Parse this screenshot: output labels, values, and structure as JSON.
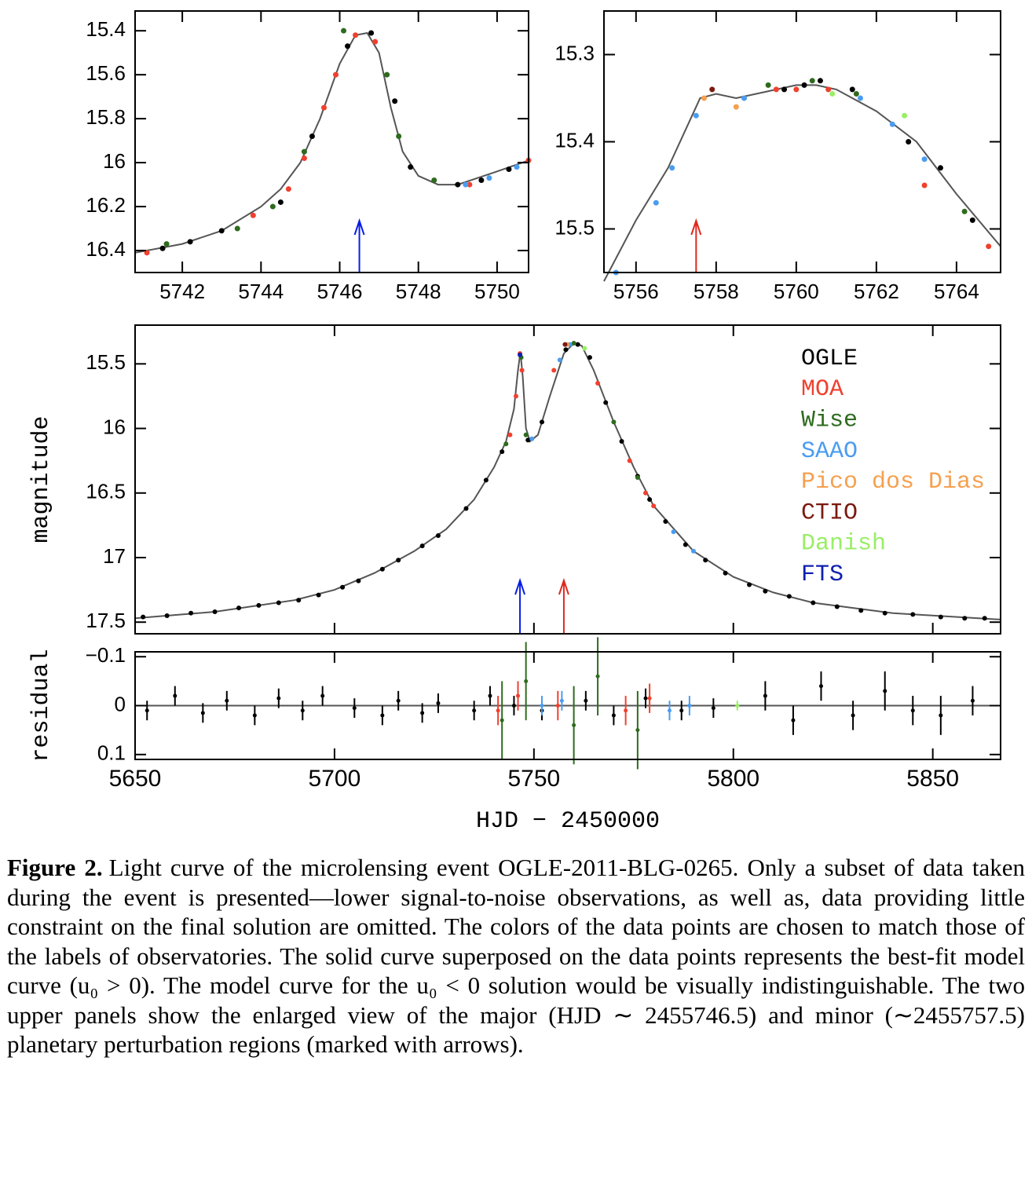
{
  "chart_data": [
    {
      "type": "scatter",
      "xlim": [
        5740.8,
        5750.8
      ],
      "ylim": [
        16.5,
        15.31
      ],
      "xticks": [
        5742,
        5744,
        5746,
        5748,
        5750
      ],
      "yticks": [
        15.4,
        15.6,
        15.8,
        16,
        16.2,
        16.4
      ],
      "model": {
        "color": "#555555",
        "x": [
          5740.8,
          5742,
          5743,
          5744,
          5744.5,
          5745,
          5745.5,
          5746,
          5746.4,
          5746.7,
          5747,
          5747.3,
          5747.6,
          5748,
          5748.5,
          5749,
          5749.5,
          5750,
          5750.8
        ],
        "values": [
          16.41,
          16.37,
          16.31,
          16.2,
          16.12,
          16.0,
          15.8,
          15.55,
          15.42,
          15.41,
          15.5,
          15.75,
          15.95,
          16.06,
          16.1,
          16.1,
          16.07,
          16.04,
          15.99
        ]
      },
      "series": [
        {
          "color": "#000000",
          "x": [
            5741.5,
            5742.2,
            5743,
            5744.5,
            5745.3,
            5746.2,
            5746.8,
            5747.4,
            5747.8,
            5749,
            5749.6,
            5750.3
          ],
          "values": [
            16.39,
            16.36,
            16.31,
            16.18,
            15.88,
            15.47,
            15.41,
            15.72,
            16.02,
            16.1,
            16.08,
            16.03
          ]
        },
        {
          "color": "#f0402e",
          "x": [
            5741.1,
            5743.8,
            5744.7,
            5745.1,
            5745.6,
            5745.9,
            5746.4,
            5746.9,
            5749.3,
            5750.8
          ],
          "values": [
            16.41,
            16.24,
            16.12,
            15.98,
            15.75,
            15.6,
            15.42,
            15.45,
            16.1,
            15.99
          ]
        },
        {
          "color": "#2e6b1e",
          "x": [
            5741.6,
            5743.4,
            5744.3,
            5745.1,
            5746.1,
            5747.2,
            5747.5,
            5748.4
          ],
          "values": [
            16.37,
            16.3,
            16.2,
            15.95,
            15.4,
            15.6,
            15.88,
            16.08
          ]
        },
        {
          "color": "#4a9cf0",
          "x": [
            5749.2,
            5749.8,
            5750.5
          ],
          "values": [
            16.1,
            16.07,
            16.02
          ]
        }
      ],
      "arrows": [
        {
          "x": 5746.5,
          "color": "#0a1ee6"
        }
      ]
    },
    {
      "type": "scatter",
      "xlim": [
        5755.2,
        5765.1
      ],
      "ylim": [
        15.55,
        15.25
      ],
      "xticks": [
        5756,
        5758,
        5760,
        5762,
        5764
      ],
      "yticks": [
        15.3,
        15.4,
        15.5
      ],
      "model": {
        "color": "#555555",
        "x": [
          5755.2,
          5756,
          5756.8,
          5757.3,
          5757.6,
          5758,
          5758.5,
          5759,
          5760,
          5760.5,
          5761,
          5762,
          5763,
          5764,
          5765.1
        ],
        "values": [
          15.56,
          15.49,
          15.43,
          15.38,
          15.35,
          15.345,
          15.35,
          15.345,
          15.335,
          15.335,
          15.34,
          15.365,
          15.4,
          15.46,
          15.52
        ]
      },
      "series": [
        {
          "color": "#000000",
          "x": [
            5759.7,
            5760.2,
            5760.6,
            5761.4,
            5762.8,
            5763.6,
            5764.4
          ],
          "values": [
            15.34,
            15.335,
            15.33,
            15.34,
            15.4,
            15.43,
            15.49
          ]
        },
        {
          "color": "#f0402e",
          "x": [
            5759.5,
            5760.0,
            5760.8,
            5763.2,
            5764.8
          ],
          "values": [
            15.34,
            15.34,
            15.34,
            15.45,
            15.52
          ]
        },
        {
          "color": "#2e6b1e",
          "x": [
            5759.3,
            5760.4,
            5761.5,
            5764.2
          ],
          "values": [
            15.335,
            15.33,
            15.345,
            15.48
          ]
        },
        {
          "color": "#4a9cf0",
          "x": [
            5755.5,
            5756.5,
            5756.9,
            5757.5,
            5758.7,
            5761.6,
            5762.4,
            5763.2
          ],
          "values": [
            15.55,
            15.47,
            15.43,
            15.37,
            15.35,
            15.35,
            15.38,
            15.42
          ]
        },
        {
          "color": "#f5a050",
          "x": [
            5757.7,
            5758.5
          ],
          "values": [
            15.35,
            15.36
          ]
        },
        {
          "color": "#7a1a10",
          "x": [
            5757.9
          ],
          "values": [
            15.34
          ]
        },
        {
          "color": "#99ee66",
          "x": [
            5760.9,
            5762.7
          ],
          "values": [
            15.345,
            15.37
          ]
        }
      ],
      "arrows": [
        {
          "x": 5757.5,
          "color": "#e0281e"
        }
      ]
    },
    {
      "type": "scatter",
      "ylabel": "magnitude",
      "xlim": [
        5650,
        5867
      ],
      "ylim": [
        17.59,
        15.2
      ],
      "xticks": [
        5650,
        5700,
        5750,
        5800,
        5850
      ],
      "yticks": [
        15.5,
        16,
        16.5,
        17,
        17.5
      ],
      "legend": "upper right",
      "model": {
        "color": "#555555",
        "x": [
          5650,
          5670,
          5690,
          5700,
          5710,
          5720,
          5728,
          5735,
          5740,
          5743,
          5745,
          5746,
          5746.6,
          5747.2,
          5748,
          5749,
          5751,
          5754,
          5757.5,
          5760,
          5762,
          5765,
          5770,
          5775,
          5780,
          5790,
          5800,
          5810,
          5820,
          5840,
          5867
        ],
        "values": [
          17.47,
          17.42,
          17.33,
          17.25,
          17.12,
          16.95,
          16.78,
          16.55,
          16.3,
          16.1,
          15.85,
          15.55,
          15.41,
          15.6,
          16.0,
          16.1,
          16.05,
          15.75,
          15.42,
          15.34,
          15.36,
          15.55,
          15.95,
          16.3,
          16.6,
          16.95,
          17.15,
          17.27,
          17.35,
          17.43,
          17.48
        ]
      },
      "series": [
        {
          "name": "OGLE",
          "color": "#000000",
          "x": [
            5652,
            5658,
            5664,
            5670,
            5676,
            5681,
            5686,
            5691,
            5696,
            5702,
            5706,
            5712,
            5716,
            5722,
            5726,
            5733,
            5738,
            5742,
            5748.5,
            5752,
            5758,
            5761,
            5764,
            5768,
            5772,
            5776,
            5779,
            5783,
            5788,
            5793,
            5798,
            5804,
            5808,
            5814,
            5820,
            5826,
            5832,
            5838,
            5845,
            5852,
            5858,
            5863
          ],
          "values": [
            17.46,
            17.45,
            17.43,
            17.42,
            17.39,
            17.37,
            17.35,
            17.33,
            17.29,
            17.23,
            17.18,
            17.09,
            17.02,
            16.91,
            16.83,
            16.62,
            16.4,
            16.18,
            16.09,
            15.95,
            15.39,
            15.35,
            15.45,
            15.8,
            16.1,
            16.37,
            16.55,
            16.72,
            16.9,
            17.02,
            17.12,
            17.21,
            17.26,
            17.3,
            17.35,
            17.38,
            17.41,
            17.43,
            17.44,
            17.46,
            17.47,
            17.47
          ]
        },
        {
          "name": "MOA",
          "color": "#f0402e",
          "x": [
            5744,
            5745.5,
            5746.5,
            5747,
            5755,
            5766,
            5774,
            5778,
            5780
          ],
          "values": [
            16.05,
            15.75,
            15.42,
            15.55,
            15.55,
            15.65,
            16.25,
            16.5,
            16.6
          ]
        },
        {
          "name": "Wise",
          "color": "#2e6b1e",
          "x": [
            5743,
            5746.8,
            5748,
            5760,
            5770,
            5776
          ],
          "values": [
            16.12,
            15.45,
            16.05,
            15.34,
            15.95,
            16.38
          ]
        },
        {
          "name": "SAAO",
          "color": "#4a9cf0",
          "x": [
            5749.5,
            5756.5,
            5759,
            5785,
            5790
          ],
          "values": [
            16.08,
            15.47,
            15.35,
            16.8,
            16.95
          ]
        },
        {
          "name": "Pico dos Dias",
          "color": "#f5a050",
          "x": [
            5758.3
          ],
          "values": [
            15.35
          ]
        },
        {
          "name": "CTIO",
          "color": "#7a1a10",
          "x": [
            5757.8
          ],
          "values": [
            15.35
          ]
        },
        {
          "name": "Danish",
          "color": "#99ee66",
          "x": [
            5762.7
          ],
          "values": [
            15.38
          ]
        },
        {
          "name": "FTS",
          "color": "#1020b0",
          "x": [
            5746.5
          ],
          "values": [
            15.43
          ]
        }
      ],
      "arrows": [
        {
          "x": 5746.5,
          "color": "#0a1ee6"
        },
        {
          "x": 5757.5,
          "color": "#e0281e"
        }
      ]
    },
    {
      "type": "errorbar",
      "ylabel": "residual",
      "xlabel": "HJD − 2450000",
      "xlim": [
        5650,
        5867
      ],
      "ylim": [
        0.11,
        -0.11
      ],
      "xticks": [
        5650,
        5700,
        5750,
        5800,
        5850
      ],
      "yticks": [
        {
          "value": -0.1,
          "label": "−0.1"
        },
        0,
        0.1
      ],
      "model": {
        "color": "#555555",
        "x": [
          5650,
          5867
        ],
        "values": [
          0,
          0
        ]
      },
      "series": [
        {
          "color": "#000000",
          "x": [
            5653,
            5660,
            5667,
            5673,
            5680,
            5686,
            5692,
            5697,
            5705,
            5712,
            5716,
            5722,
            5726,
            5735,
            5739,
            5745,
            5752,
            5763,
            5770,
            5778,
            5787,
            5795,
            5808,
            5815,
            5822,
            5830,
            5838,
            5845,
            5852,
            5860
          ],
          "values": [
            0.01,
            -0.02,
            0.015,
            -0.01,
            0.02,
            -0.015,
            0.01,
            -0.02,
            0.005,
            0.02,
            -0.01,
            0.015,
            -0.005,
            0.01,
            -0.02,
            0.0,
            0.01,
            -0.01,
            0.02,
            -0.015,
            0.01,
            0.005,
            -0.02,
            0.03,
            -0.04,
            0.02,
            -0.03,
            0.01,
            0.02,
            -0.01
          ],
          "errors": [
            0.02,
            0.02,
            0.02,
            0.02,
            0.02,
            0.02,
            0.02,
            0.02,
            0.02,
            0.02,
            0.02,
            0.02,
            0.02,
            0.02,
            0.02,
            0.02,
            0.02,
            0.02,
            0.02,
            0.02,
            0.02,
            0.02,
            0.03,
            0.03,
            0.03,
            0.03,
            0.04,
            0.03,
            0.04,
            0.03
          ]
        },
        {
          "color": "#f0402e",
          "x": [
            5741,
            5746,
            5756,
            5773,
            5779
          ],
          "values": [
            0.01,
            -0.02,
            0.0,
            0.01,
            -0.015
          ],
          "errors": [
            0.03,
            0.03,
            0.03,
            0.03,
            0.03
          ]
        },
        {
          "color": "#2e6b1e",
          "x": [
            5742,
            5748,
            5760,
            5766,
            5776
          ],
          "values": [
            0.03,
            -0.05,
            0.04,
            -0.06,
            0.05
          ],
          "errors": [
            0.08,
            0.08,
            0.08,
            0.08,
            0.08
          ]
        },
        {
          "color": "#4a9cf0",
          "x": [
            5752,
            5757,
            5784,
            5789
          ],
          "values": [
            0.0,
            -0.01,
            0.01,
            0.0
          ],
          "errors": [
            0.02,
            0.02,
            0.02,
            0.02
          ]
        },
        {
          "color": "#99ee66",
          "x": [
            5801
          ],
          "values": [
            0.0
          ],
          "errors": [
            0.01
          ]
        }
      ]
    }
  ],
  "caption": {
    "label": "Figure 2.",
    "text": "Light curve of the microlensing event OGLE-2011-BLG-0265. Only a subset of data taken during the event is presented—lower signal-to-noise observations, as well as, data providing little constraint on the final solution are omitted. The colors of the data points are chosen to match those of the labels of observatories. The solid curve superposed on the data points represents the best-fit model curve (u₀ > 0). The model curve for the u₀ < 0 solution would be visually indistinguishable. The two upper panels show the enlarged view of the major (HJD ∼ 2455746.5) and minor (∼2455757.5) planetary perturbation regions (marked with arrows)."
  }
}
